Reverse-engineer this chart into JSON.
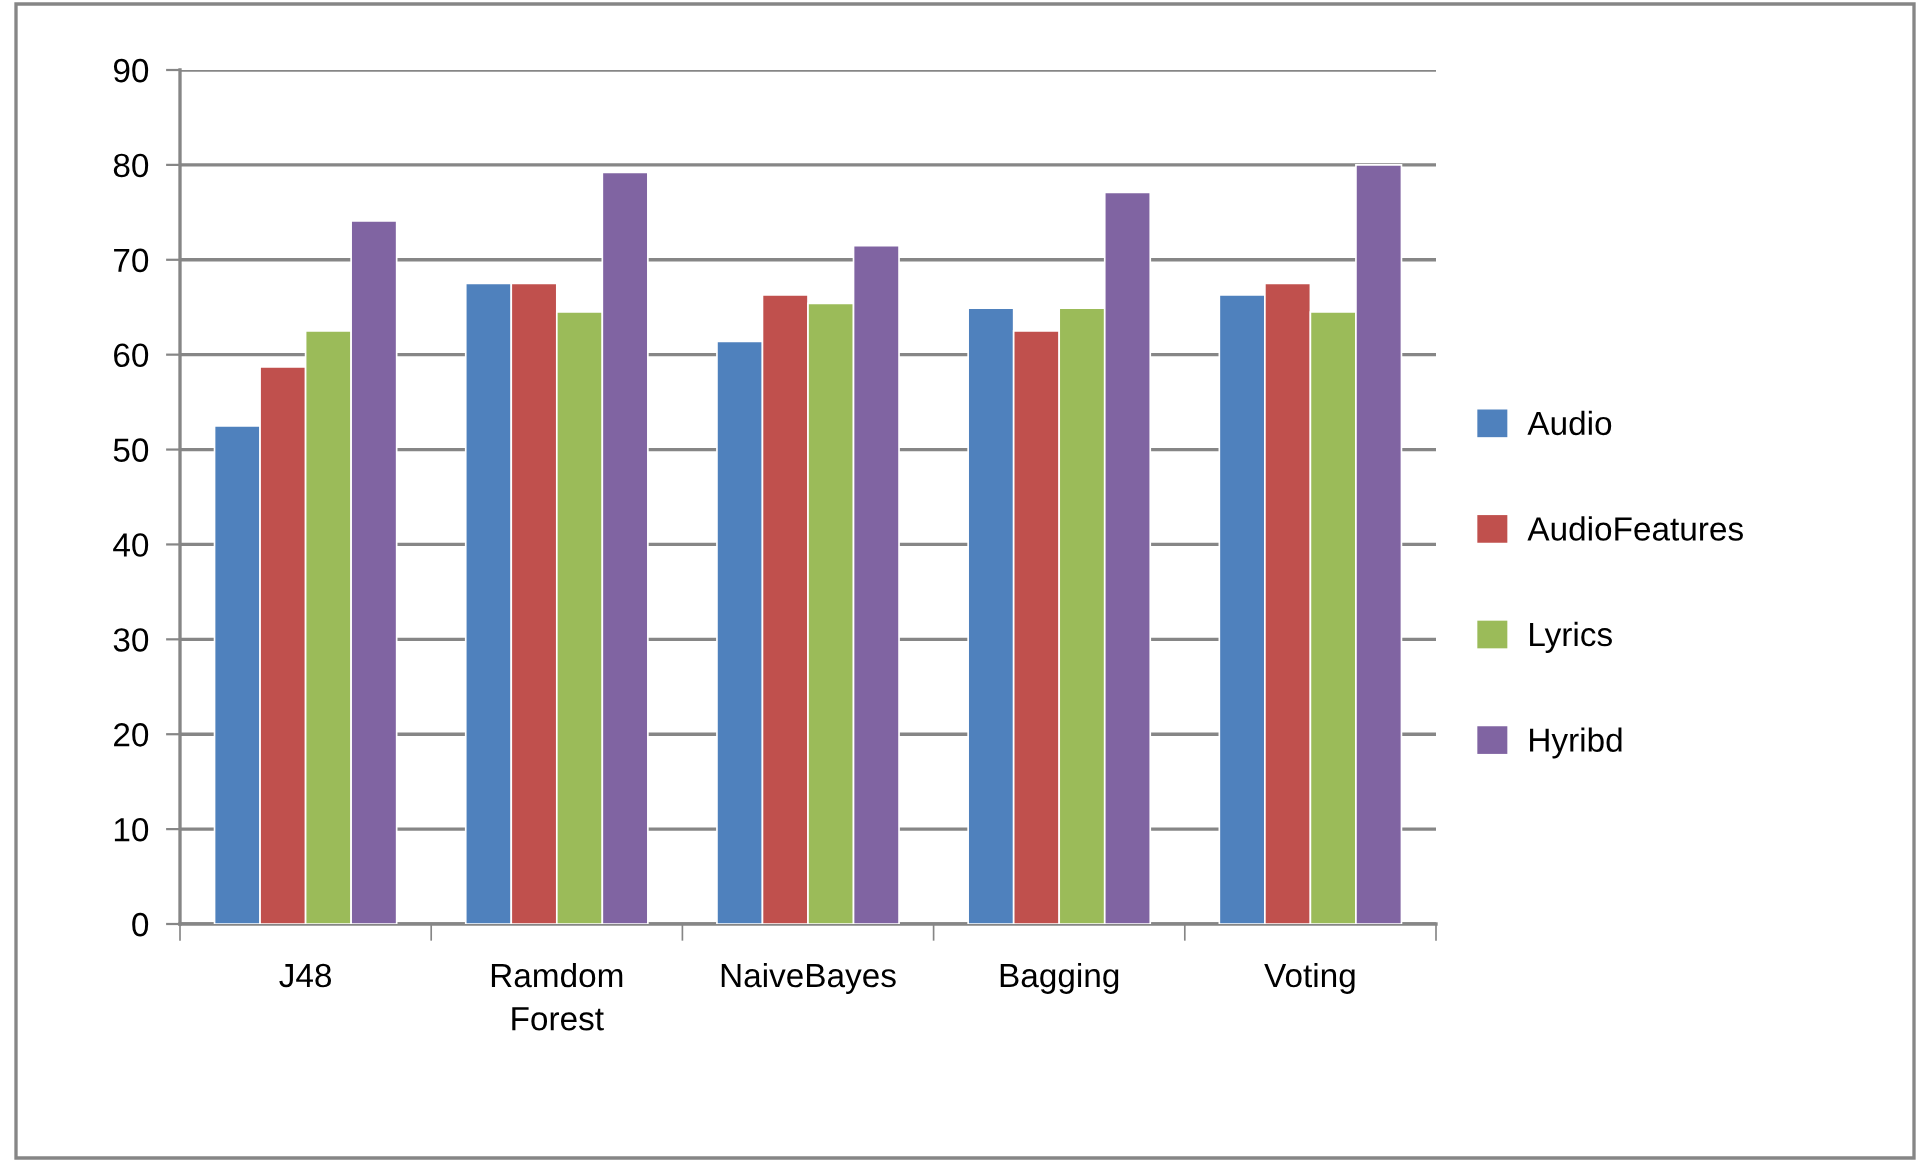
{
  "chart_data": {
    "type": "bar",
    "categories": [
      "J48",
      "Ramdom\nForest",
      "NaiveBayes",
      "Bagging",
      "Voting"
    ],
    "series": [
      {
        "name": "Audio",
        "color": "#4f81bd",
        "values": [
          52.5,
          67.5,
          61.4,
          64.9,
          66.3
        ]
      },
      {
        "name": "AudioFeatures",
        "color": "#c0504d",
        "values": [
          58.7,
          67.5,
          66.3,
          62.5,
          67.5
        ]
      },
      {
        "name": "Lyrics",
        "color": "#9bbb59",
        "values": [
          62.5,
          64.5,
          65.4,
          64.9,
          64.5
        ]
      },
      {
        "name": "Hyribd",
        "color": "#8064a2",
        "values": [
          74.1,
          79.2,
          71.5,
          77.1,
          80.0
        ]
      }
    ],
    "ylim": [
      0,
      90
    ],
    "yticks": [
      0,
      10,
      20,
      30,
      40,
      50,
      60,
      70,
      80,
      90
    ],
    "grid": "y",
    "legend": "right"
  }
}
